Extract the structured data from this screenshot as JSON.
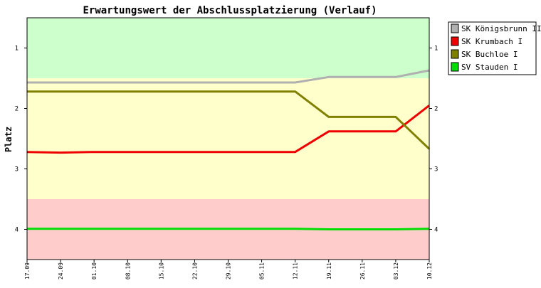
{
  "chart_data": {
    "type": "line",
    "title": "Erwartungswert der Abschlussplatzierung (Verlauf)",
    "xlabel": "",
    "ylabel": "Platz",
    "y_inverted": true,
    "ylim": [
      0.5,
      4.5
    ],
    "yticks": [
      1,
      2,
      3,
      4
    ],
    "ytick_labels": [
      "1",
      "2",
      "3",
      "4"
    ],
    "categories": [
      "17.09",
      "24.09",
      "01.10",
      "08.10",
      "15.10",
      "22.10",
      "29.10",
      "05.11",
      "12.11",
      "19.11",
      "26.11",
      "03.12",
      "10.12"
    ],
    "bands": [
      {
        "from": 0.5,
        "to": 1.5,
        "color": "#ccffcc"
      },
      {
        "from": 1.5,
        "to": 3.5,
        "color": "#ffffcc"
      },
      {
        "from": 3.5,
        "to": 4.5,
        "color": "#ffcccc"
      }
    ],
    "legend_position": "right",
    "series": [
      {
        "name": "SK Königsbrunn II",
        "color": "#b0b0b0",
        "values": [
          1.57,
          1.57,
          1.57,
          1.57,
          1.57,
          1.57,
          1.57,
          1.57,
          1.57,
          1.48,
          1.48,
          1.48,
          1.37
        ]
      },
      {
        "name": "SK Krumbach I",
        "color": "#ee0000",
        "values": [
          2.72,
          2.73,
          2.72,
          2.72,
          2.72,
          2.72,
          2.72,
          2.72,
          2.72,
          2.38,
          2.38,
          2.38,
          1.95
        ]
      },
      {
        "name": "SK Buchloe I",
        "color": "#808000",
        "values": [
          1.72,
          1.72,
          1.72,
          1.72,
          1.72,
          1.72,
          1.72,
          1.72,
          1.72,
          2.14,
          2.14,
          2.14,
          2.67
        ]
      },
      {
        "name": "SV Stauden I",
        "color": "#00dd00",
        "values": [
          3.99,
          3.99,
          3.99,
          3.99,
          3.99,
          3.99,
          3.99,
          3.99,
          3.99,
          4.0,
          4.0,
          4.0,
          3.99
        ]
      }
    ]
  }
}
